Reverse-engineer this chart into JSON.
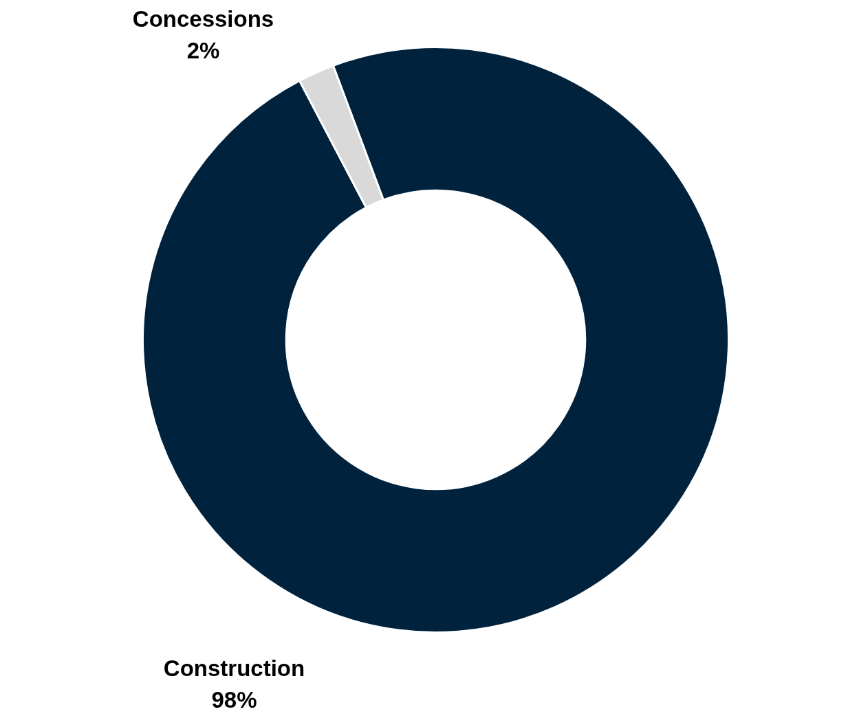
{
  "chart_data": {
    "type": "donut",
    "categories": [
      "Construction",
      "Concessions"
    ],
    "values": [
      98,
      2
    ],
    "colors": [
      "#00223d",
      "#d9d9d9"
    ],
    "value_labels": [
      "98%",
      "2%"
    ]
  }
}
